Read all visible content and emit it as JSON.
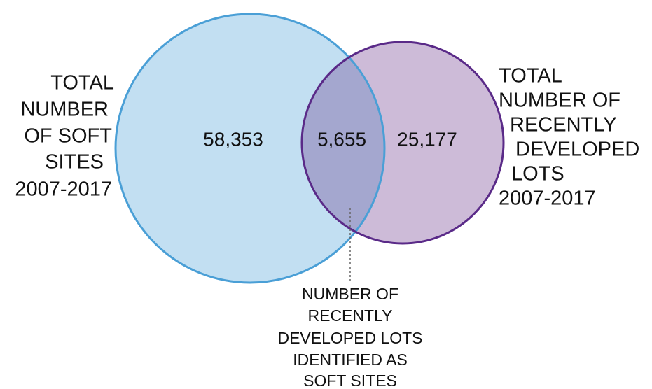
{
  "sets": [
    {
      "label_lines": [
        "TOTAL",
        "NUMBER",
        "OF SOFT",
        "SITES",
        "2007-2017"
      ],
      "count": "58,353"
    },
    {
      "label_lines": [
        "TOTAL",
        "NUMBER OF",
        "RECENTLY",
        "DEVELOPED",
        "LOTS",
        "2007-2017"
      ],
      "count": "25,177"
    }
  ],
  "intersection": {
    "count": "5,655",
    "label_lines": [
      "NUMBER OF",
      "RECENTLY",
      "DEVELOPED LOTS",
      "IDENTIFIED AS",
      "SOFT SITES"
    ]
  }
}
